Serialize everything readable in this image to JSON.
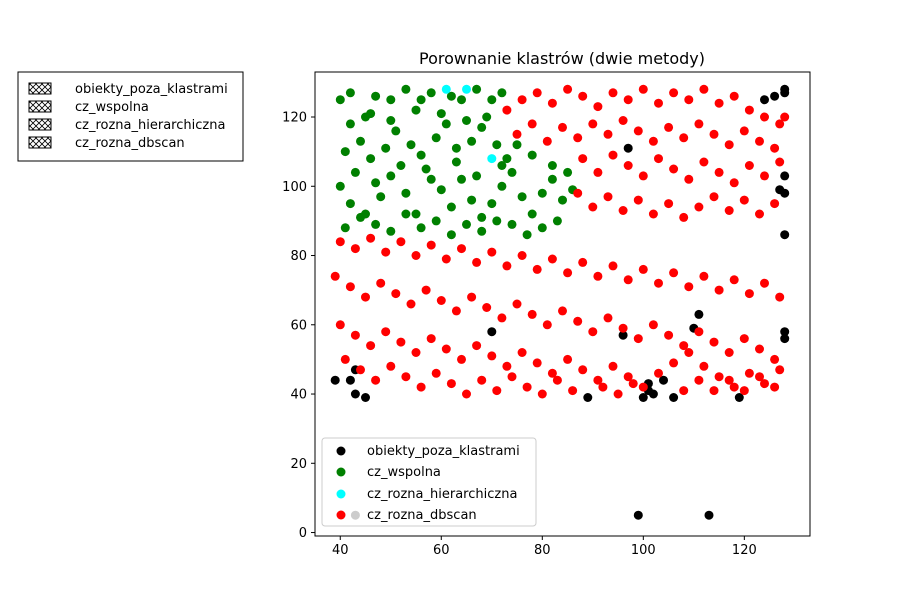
{
  "chart_data": {
    "type": "scatter",
    "title": "Porownanie klastrów (dwie metody)",
    "xlabel": "",
    "ylabel": "",
    "xlim": [
      35,
      133
    ],
    "ylim": [
      -1,
      133
    ],
    "xticks": [
      40,
      60,
      80,
      100,
      120
    ],
    "yticks": [
      0,
      20,
      40,
      60,
      80,
      100,
      120
    ],
    "grid": false,
    "legend_placement": "lower left",
    "outside_legend_placement": "upper left, outside axes",
    "colors": {
      "obiekty_poza_klastrami": "#000000",
      "cz_wspolna": "#008000",
      "cz_rozna_hierarchiczna": "#00ffff",
      "cz_rozna_dbscan": "#ff0000"
    },
    "series": [
      {
        "name": "obiekty_poza_klastrami",
        "color": "#000000",
        "points": [
          [
            39,
            44
          ],
          [
            42,
            44
          ],
          [
            43,
            47
          ],
          [
            43,
            40
          ],
          [
            45,
            39
          ],
          [
            43,
            5
          ],
          [
            89,
            39
          ],
          [
            99,
            5
          ],
          [
            100,
            39
          ],
          [
            101,
            43
          ],
          [
            101,
            41
          ],
          [
            102,
            40
          ],
          [
            104,
            44
          ],
          [
            106,
            39
          ],
          [
            110,
            59
          ],
          [
            111,
            63
          ],
          [
            113,
            5
          ],
          [
            119,
            39
          ],
          [
            97,
            111
          ],
          [
            96,
            57
          ],
          [
            70,
            58
          ],
          [
            124,
            125
          ],
          [
            126,
            126
          ],
          [
            127,
            99
          ],
          [
            128,
            98
          ],
          [
            128,
            103
          ],
          [
            128,
            127
          ],
          [
            128,
            128
          ],
          [
            128,
            86
          ],
          [
            128,
            58
          ],
          [
            128,
            56
          ]
        ]
      },
      {
        "name": "cz_wspolna",
        "color": "#008000",
        "points": [
          [
            40,
            125
          ],
          [
            42,
            127
          ],
          [
            45,
            120
          ],
          [
            47,
            126
          ],
          [
            50,
            125
          ],
          [
            53,
            128
          ],
          [
            56,
            125
          ],
          [
            58,
            127
          ],
          [
            62,
            126
          ],
          [
            64,
            125
          ],
          [
            67,
            128
          ],
          [
            70,
            125
          ],
          [
            72,
            127
          ],
          [
            40,
            100
          ],
          [
            42,
            95
          ],
          [
            45,
            92
          ],
          [
            48,
            97
          ],
          [
            50,
            103
          ],
          [
            53,
            98
          ],
          [
            55,
            92
          ],
          [
            57,
            105
          ],
          [
            60,
            99
          ],
          [
            62,
            94
          ],
          [
            64,
            102
          ],
          [
            66,
            96
          ],
          [
            68,
            91
          ],
          [
            70,
            95
          ],
          [
            72,
            100
          ],
          [
            74,
            104
          ],
          [
            76,
            97
          ],
          [
            78,
            92
          ],
          [
            80,
            98
          ],
          [
            82,
            102
          ],
          [
            84,
            96
          ],
          [
            86,
            99
          ],
          [
            85,
            104
          ],
          [
            41,
            110
          ],
          [
            44,
            113
          ],
          [
            46,
            108
          ],
          [
            49,
            111
          ],
          [
            51,
            116
          ],
          [
            54,
            112
          ],
          [
            56,
            109
          ],
          [
            59,
            114
          ],
          [
            61,
            118
          ],
          [
            63,
            111
          ],
          [
            66,
            113
          ],
          [
            68,
            117
          ],
          [
            71,
            112
          ],
          [
            73,
            108
          ],
          [
            41,
            88
          ],
          [
            44,
            91
          ],
          [
            47,
            89
          ],
          [
            50,
            87
          ],
          [
            53,
            92
          ],
          [
            56,
            88
          ],
          [
            59,
            90
          ],
          [
            62,
            86
          ],
          [
            65,
            89
          ],
          [
            68,
            87
          ],
          [
            71,
            90
          ],
          [
            74,
            89
          ],
          [
            77,
            86
          ],
          [
            80,
            88
          ],
          [
            83,
            90
          ],
          [
            42,
            118
          ],
          [
            46,
            121
          ],
          [
            50,
            119
          ],
          [
            55,
            122
          ],
          [
            60,
            121
          ],
          [
            65,
            119
          ],
          [
            69,
            120
          ],
          [
            43,
            104
          ],
          [
            47,
            101
          ],
          [
            52,
            106
          ],
          [
            58,
            102
          ],
          [
            63,
            107
          ],
          [
            67,
            103
          ],
          [
            72,
            106
          ],
          [
            75,
            112
          ],
          [
            78,
            109
          ],
          [
            82,
            106
          ]
        ]
      },
      {
        "name": "cz_rozna_hierarchiczna",
        "color": "#00ffff",
        "points": [
          [
            61,
            128
          ],
          [
            65,
            128
          ],
          [
            70,
            108
          ]
        ]
      },
      {
        "name": "cz_rozna_dbscan",
        "color": "#ff0000",
        "points": [
          [
            73,
            122
          ],
          [
            76,
            125
          ],
          [
            79,
            127
          ],
          [
            82,
            124
          ],
          [
            85,
            128
          ],
          [
            88,
            126
          ],
          [
            91,
            123
          ],
          [
            94,
            127
          ],
          [
            97,
            125
          ],
          [
            100,
            128
          ],
          [
            103,
            124
          ],
          [
            106,
            127
          ],
          [
            109,
            125
          ],
          [
            112,
            128
          ],
          [
            115,
            124
          ],
          [
            118,
            126
          ],
          [
            121,
            122
          ],
          [
            124,
            120
          ],
          [
            127,
            118
          ],
          [
            75,
            115
          ],
          [
            78,
            118
          ],
          [
            81,
            113
          ],
          [
            84,
            117
          ],
          [
            87,
            114
          ],
          [
            90,
            118
          ],
          [
            93,
            115
          ],
          [
            96,
            119
          ],
          [
            99,
            116
          ],
          [
            102,
            113
          ],
          [
            105,
            117
          ],
          [
            108,
            114
          ],
          [
            111,
            118
          ],
          [
            114,
            115
          ],
          [
            117,
            112
          ],
          [
            120,
            116
          ],
          [
            123,
            113
          ],
          [
            126,
            111
          ],
          [
            88,
            108
          ],
          [
            91,
            104
          ],
          [
            94,
            109
          ],
          [
            97,
            106
          ],
          [
            100,
            103
          ],
          [
            103,
            108
          ],
          [
            106,
            105
          ],
          [
            109,
            102
          ],
          [
            112,
            107
          ],
          [
            115,
            104
          ],
          [
            118,
            101
          ],
          [
            121,
            106
          ],
          [
            124,
            103
          ],
          [
            127,
            107
          ],
          [
            87,
            98
          ],
          [
            90,
            94
          ],
          [
            93,
            97
          ],
          [
            96,
            93
          ],
          [
            99,
            96
          ],
          [
            102,
            92
          ],
          [
            105,
            95
          ],
          [
            108,
            91
          ],
          [
            111,
            94
          ],
          [
            114,
            97
          ],
          [
            117,
            93
          ],
          [
            120,
            96
          ],
          [
            123,
            92
          ],
          [
            126,
            95
          ],
          [
            40,
            84
          ],
          [
            43,
            82
          ],
          [
            46,
            85
          ],
          [
            49,
            81
          ],
          [
            52,
            84
          ],
          [
            55,
            80
          ],
          [
            58,
            83
          ],
          [
            61,
            79
          ],
          [
            64,
            82
          ],
          [
            67,
            78
          ],
          [
            70,
            81
          ],
          [
            73,
            77
          ],
          [
            76,
            80
          ],
          [
            79,
            76
          ],
          [
            82,
            79
          ],
          [
            85,
            75
          ],
          [
            88,
            78
          ],
          [
            91,
            74
          ],
          [
            94,
            77
          ],
          [
            97,
            73
          ],
          [
            100,
            76
          ],
          [
            103,
            72
          ],
          [
            106,
            75
          ],
          [
            109,
            71
          ],
          [
            112,
            74
          ],
          [
            115,
            70
          ],
          [
            118,
            73
          ],
          [
            121,
            69
          ],
          [
            124,
            72
          ],
          [
            127,
            68
          ],
          [
            39,
            74
          ],
          [
            42,
            71
          ],
          [
            45,
            68
          ],
          [
            48,
            72
          ],
          [
            51,
            69
          ],
          [
            54,
            66
          ],
          [
            57,
            70
          ],
          [
            60,
            67
          ],
          [
            63,
            64
          ],
          [
            66,
            68
          ],
          [
            69,
            65
          ],
          [
            72,
            62
          ],
          [
            75,
            66
          ],
          [
            78,
            63
          ],
          [
            81,
            60
          ],
          [
            84,
            64
          ],
          [
            87,
            61
          ],
          [
            90,
            58
          ],
          [
            93,
            62
          ],
          [
            96,
            59
          ],
          [
            99,
            56
          ],
          [
            102,
            60
          ],
          [
            105,
            57
          ],
          [
            108,
            54
          ],
          [
            111,
            58
          ],
          [
            114,
            55
          ],
          [
            117,
            52
          ],
          [
            120,
            56
          ],
          [
            123,
            53
          ],
          [
            126,
            50
          ],
          [
            40,
            60
          ],
          [
            43,
            57
          ],
          [
            46,
            54
          ],
          [
            49,
            58
          ],
          [
            52,
            55
          ],
          [
            55,
            52
          ],
          [
            58,
            56
          ],
          [
            61,
            53
          ],
          [
            64,
            50
          ],
          [
            67,
            54
          ],
          [
            70,
            51
          ],
          [
            73,
            48
          ],
          [
            76,
            52
          ],
          [
            79,
            49
          ],
          [
            82,
            46
          ],
          [
            85,
            50
          ],
          [
            88,
            47
          ],
          [
            91,
            44
          ],
          [
            94,
            48
          ],
          [
            97,
            45
          ],
          [
            100,
            42
          ],
          [
            103,
            46
          ],
          [
            106,
            49
          ],
          [
            109,
            52
          ],
          [
            112,
            48
          ],
          [
            115,
            45
          ],
          [
            118,
            42
          ],
          [
            121,
            46
          ],
          [
            124,
            43
          ],
          [
            127,
            47
          ],
          [
            41,
            50
          ],
          [
            44,
            47
          ],
          [
            47,
            44
          ],
          [
            50,
            48
          ],
          [
            53,
            45
          ],
          [
            56,
            42
          ],
          [
            59,
            46
          ],
          [
            62,
            43
          ],
          [
            65,
            40
          ],
          [
            68,
            44
          ],
          [
            71,
            41
          ],
          [
            74,
            45
          ],
          [
            77,
            42
          ],
          [
            80,
            40
          ],
          [
            83,
            44
          ],
          [
            86,
            41
          ],
          [
            92,
            42
          ],
          [
            95,
            40
          ],
          [
            98,
            43
          ],
          [
            108,
            41
          ],
          [
            111,
            44
          ],
          [
            114,
            41
          ],
          [
            117,
            44
          ],
          [
            120,
            41
          ],
          [
            123,
            45
          ],
          [
            126,
            42
          ],
          [
            128,
            120
          ]
        ]
      }
    ]
  },
  "legend_inner": {
    "items": [
      {
        "label": "obiekty_poza_klastrami",
        "color": "#000000"
      },
      {
        "label": "cz_wspolna",
        "color": "#008000"
      },
      {
        "label": "cz_rozna_hierarchiczna",
        "color": "#00ffff"
      },
      {
        "label": "cz_rozna_dbscan",
        "color": "#ff0000"
      }
    ]
  },
  "legend_outer": {
    "items": [
      {
        "label": "obiekty_poza_klastrami"
      },
      {
        "label": "cz_wspolna"
      },
      {
        "label": "cz_rozna_hierarchiczna"
      },
      {
        "label": "cz_rozna_dbscan"
      }
    ]
  }
}
